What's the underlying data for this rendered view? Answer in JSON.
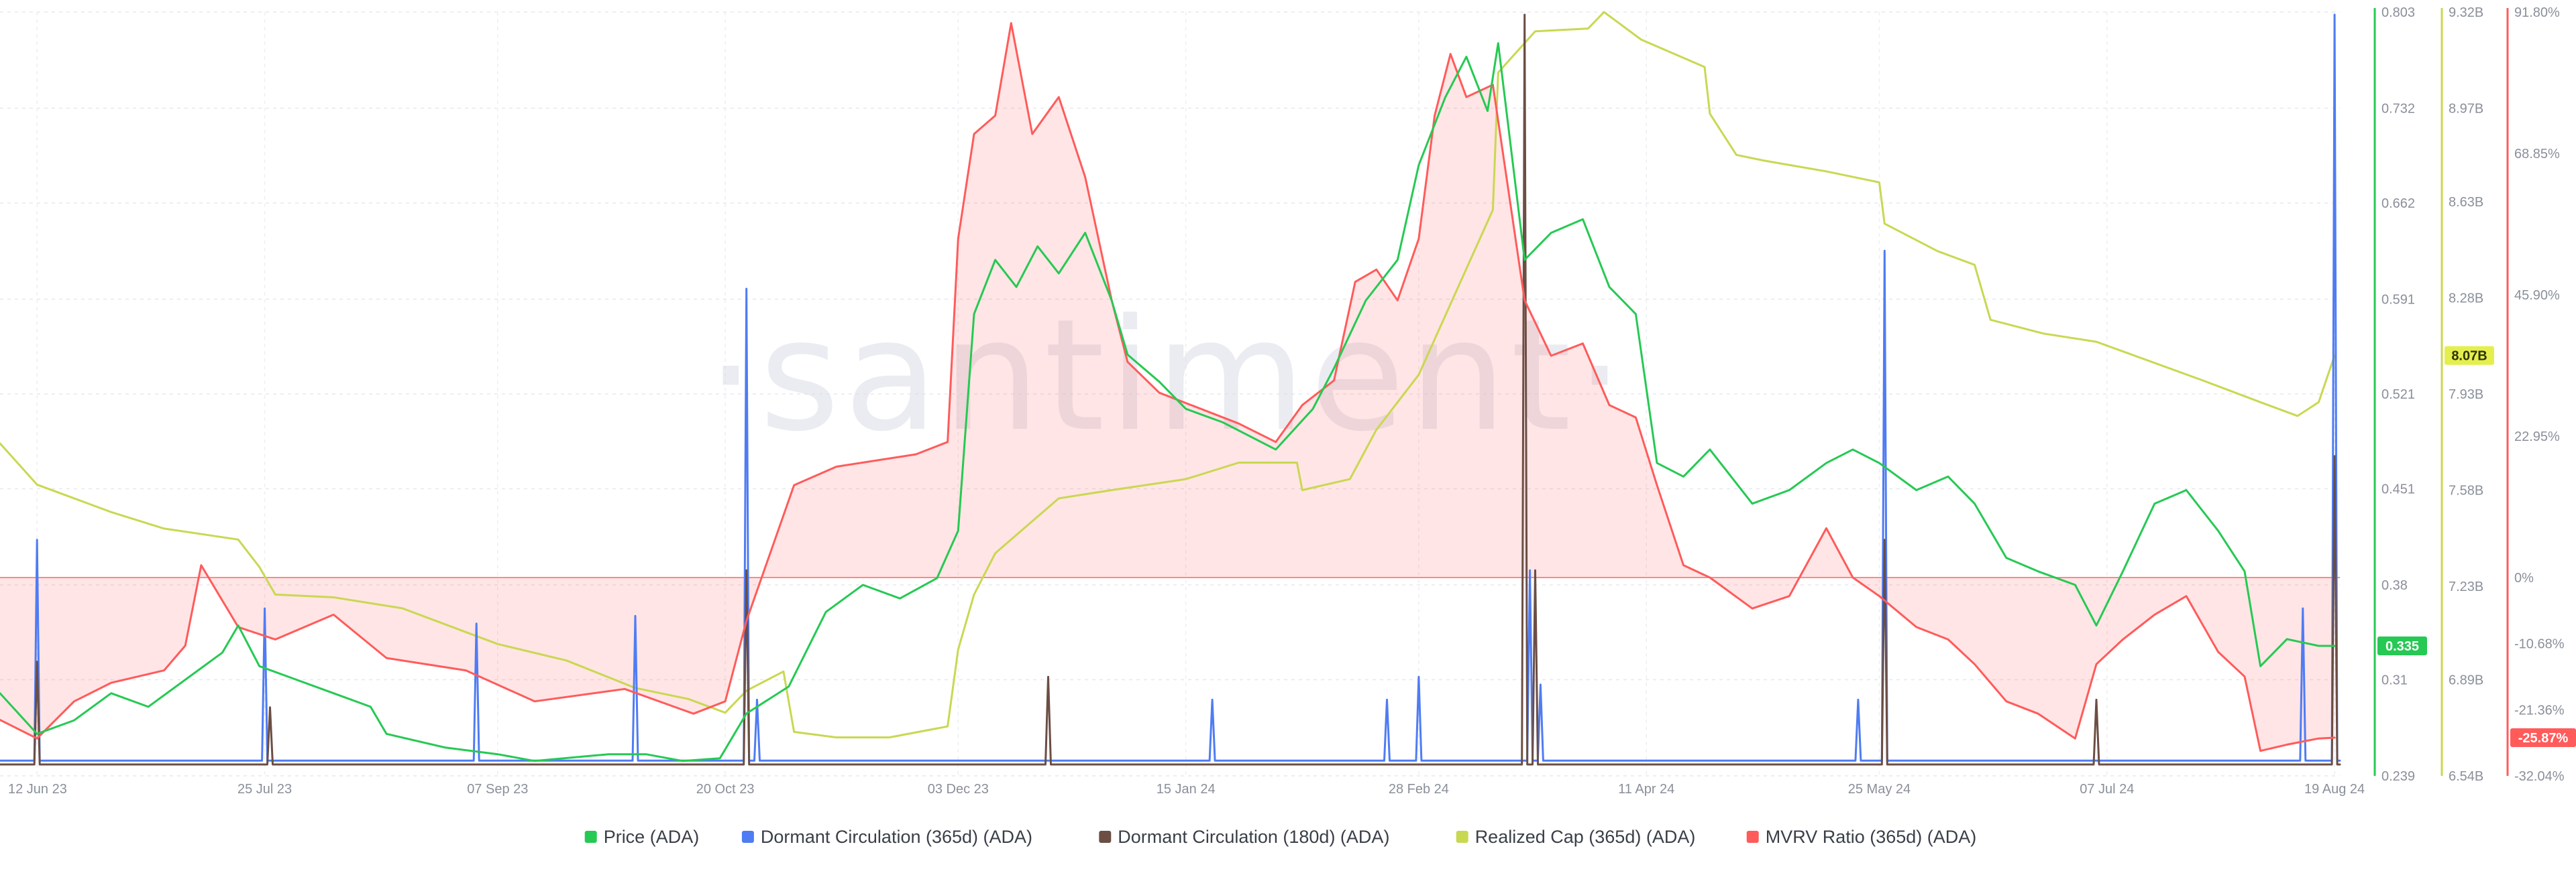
{
  "chart_data": {
    "type": "line",
    "watermark": "·santiment·",
    "x_range": [
      "2023-06-05",
      "2024-08-20"
    ],
    "x_ticks": [
      "12 Jun 23",
      "25 Jul 23",
      "07 Sep 23",
      "20 Oct 23",
      "03 Dec 23",
      "15 Jan 24",
      "28 Feb 24",
      "11 Apr 24",
      "25 May 24",
      "07 Jul 24",
      "19 Aug 24"
    ],
    "axes": {
      "price": {
        "ticks": [
          "0.803",
          "0.732",
          "0.662",
          "0.591",
          "0.521",
          "0.451",
          "0.38",
          "0.31",
          "0.239"
        ],
        "ylim": [
          0.239,
          0.803
        ],
        "color": "#26c953"
      },
      "realized_cap": {
        "ticks": [
          "9.32B",
          "8.97B",
          "8.63B",
          "8.28B",
          "7.93B",
          "7.58B",
          "7.23B",
          "6.89B",
          "6.54B"
        ],
        "ylim": [
          6.54,
          9.32
        ],
        "unit": "B",
        "color": "#c9d851"
      },
      "mvrv": {
        "ticks": [
          "91.80%",
          "68.85%",
          "45.90%",
          "22.95%",
          "0%",
          "-10.68%",
          "-21.36%",
          "-32.04%"
        ],
        "ylim": [
          -32.04,
          91.8
        ],
        "color": "#ff5b5b"
      }
    },
    "badges": [
      {
        "text": "8.07B",
        "axis": "realized_cap",
        "value": 8.07,
        "bg": "#e4ef4f",
        "fg": "#2d3200"
      },
      {
        "text": "0.335",
        "axis": "price",
        "value": 0.335,
        "bg": "#26c953",
        "fg": "#ffffff"
      },
      {
        "text": "-25.87%",
        "axis": "mvrv",
        "value": -25.87,
        "bg": "#ff5b5b",
        "fg": "#ffffff"
      }
    ],
    "series": [
      {
        "name": "Price (ADA)",
        "color": "#26c953",
        "axis": "price",
        "points": [
          [
            "2023-06-05",
            0.3
          ],
          [
            "2023-06-12",
            0.27
          ],
          [
            "2023-06-19",
            0.28
          ],
          [
            "2023-06-26",
            0.3
          ],
          [
            "2023-07-03",
            0.29
          ],
          [
            "2023-07-10",
            0.31
          ],
          [
            "2023-07-17",
            0.33
          ],
          [
            "2023-07-20",
            0.35
          ],
          [
            "2023-07-24",
            0.32
          ],
          [
            "2023-07-31",
            0.31
          ],
          [
            "2023-08-07",
            0.3
          ],
          [
            "2023-08-14",
            0.29
          ],
          [
            "2023-08-17",
            0.27
          ],
          [
            "2023-08-28",
            0.26
          ],
          [
            "2023-09-07",
            0.255
          ],
          [
            "2023-09-14",
            0.25
          ],
          [
            "2023-09-28",
            0.255
          ],
          [
            "2023-10-05",
            0.255
          ],
          [
            "2023-10-12",
            0.25
          ],
          [
            "2023-10-19",
            0.252
          ],
          [
            "2023-10-24",
            0.285
          ],
          [
            "2023-11-01",
            0.305
          ],
          [
            "2023-11-08",
            0.36
          ],
          [
            "2023-11-15",
            0.38
          ],
          [
            "2023-11-22",
            0.37
          ],
          [
            "2023-11-29",
            0.385
          ],
          [
            "2023-12-03",
            0.42
          ],
          [
            "2023-12-06",
            0.58
          ],
          [
            "2023-12-10",
            0.62
          ],
          [
            "2023-12-14",
            0.6
          ],
          [
            "2023-12-18",
            0.63
          ],
          [
            "2023-12-22",
            0.61
          ],
          [
            "2023-12-27",
            0.64
          ],
          [
            "2024-01-01",
            0.59
          ],
          [
            "2024-01-04",
            0.55
          ],
          [
            "2024-01-10",
            0.53
          ],
          [
            "2024-01-15",
            0.51
          ],
          [
            "2024-01-22",
            0.5
          ],
          [
            "2024-02-01",
            0.48
          ],
          [
            "2024-02-08",
            0.51
          ],
          [
            "2024-02-12",
            0.54
          ],
          [
            "2024-02-18",
            0.59
          ],
          [
            "2024-02-24",
            0.62
          ],
          [
            "2024-02-28",
            0.69
          ],
          [
            "2024-03-04",
            0.74
          ],
          [
            "2024-03-08",
            0.77
          ],
          [
            "2024-03-12",
            0.73
          ],
          [
            "2024-03-14",
            0.78
          ],
          [
            "2024-03-19",
            0.62
          ],
          [
            "2024-03-24",
            0.64
          ],
          [
            "2024-03-30",
            0.65
          ],
          [
            "2024-04-04",
            0.6
          ],
          [
            "2024-04-09",
            0.58
          ],
          [
            "2024-04-13",
            0.47
          ],
          [
            "2024-04-18",
            0.46
          ],
          [
            "2024-04-23",
            0.48
          ],
          [
            "2024-05-01",
            0.44
          ],
          [
            "2024-05-08",
            0.45
          ],
          [
            "2024-05-15",
            0.47
          ],
          [
            "2024-05-20",
            0.48
          ],
          [
            "2024-05-25",
            0.47
          ],
          [
            "2024-06-01",
            0.45
          ],
          [
            "2024-06-07",
            0.46
          ],
          [
            "2024-06-12",
            0.44
          ],
          [
            "2024-06-18",
            0.4
          ],
          [
            "2024-06-24",
            0.39
          ],
          [
            "2024-07-01",
            0.38
          ],
          [
            "2024-07-05",
            0.35
          ],
          [
            "2024-07-10",
            0.39
          ],
          [
            "2024-07-16",
            0.44
          ],
          [
            "2024-07-22",
            0.45
          ],
          [
            "2024-07-28",
            0.42
          ],
          [
            "2024-08-02",
            0.39
          ],
          [
            "2024-08-05",
            0.32
          ],
          [
            "2024-08-10",
            0.34
          ],
          [
            "2024-08-16",
            0.335
          ],
          [
            "2024-08-19",
            0.335
          ]
        ]
      },
      {
        "name": "Dormant Circulation (365d) (ADA)",
        "color": "#4f7cf3",
        "axis": "dormant",
        "baseline": 0.02,
        "spikes": [
          [
            "2023-06-12",
            0.31
          ],
          [
            "2023-07-25",
            0.22
          ],
          [
            "2023-09-03",
            0.2
          ],
          [
            "2023-10-03",
            0.21
          ],
          [
            "2023-10-24",
            0.64
          ],
          [
            "2023-10-26",
            0.1
          ],
          [
            "2024-01-20",
            0.1
          ],
          [
            "2024-02-22",
            0.1
          ],
          [
            "2024-02-28",
            0.13
          ],
          [
            "2024-03-20",
            0.27
          ],
          [
            "2024-03-22",
            0.12
          ],
          [
            "2024-05-21",
            0.1
          ],
          [
            "2024-05-26",
            0.69
          ],
          [
            "2024-08-13",
            0.22
          ],
          [
            "2024-08-19",
            1.0
          ]
        ]
      },
      {
        "name": "Dormant Circulation (180d) (ADA)",
        "color": "#6b4e44",
        "axis": "dormant",
        "baseline": 0.015,
        "spikes": [
          [
            "2023-06-12",
            0.15
          ],
          [
            "2023-07-26",
            0.09
          ],
          [
            "2023-10-24",
            0.27
          ],
          [
            "2023-12-20",
            0.13
          ],
          [
            "2024-03-19",
            1.0
          ],
          [
            "2024-03-21",
            0.27
          ],
          [
            "2024-05-26",
            0.31
          ],
          [
            "2024-07-05",
            0.1
          ],
          [
            "2024-08-19",
            0.42
          ]
        ]
      },
      {
        "name": "Realized Cap (365d) (ADA)",
        "color": "#c9d851",
        "axis": "realized_cap",
        "points": [
          [
            "2023-06-05",
            7.75
          ],
          [
            "2023-06-12",
            7.6
          ],
          [
            "2023-06-19",
            7.55
          ],
          [
            "2023-06-26",
            7.5
          ],
          [
            "2023-07-06",
            7.44
          ],
          [
            "2023-07-20",
            7.4
          ],
          [
            "2023-07-24",
            7.3
          ],
          [
            "2023-07-27",
            7.2
          ],
          [
            "2023-08-07",
            7.19
          ],
          [
            "2023-08-20",
            7.15
          ],
          [
            "2023-09-07",
            7.02
          ],
          [
            "2023-09-20",
            6.96
          ],
          [
            "2023-10-03",
            6.86
          ],
          [
            "2023-10-13",
            6.82
          ],
          [
            "2023-10-20",
            6.77
          ],
          [
            "2023-10-24",
            6.85
          ],
          [
            "2023-10-31",
            6.92
          ],
          [
            "2023-11-02",
            6.7
          ],
          [
            "2023-11-10",
            6.68
          ],
          [
            "2023-11-20",
            6.68
          ],
          [
            "2023-12-01",
            6.72
          ],
          [
            "2023-12-03",
            7.0
          ],
          [
            "2023-12-06",
            7.2
          ],
          [
            "2023-12-10",
            7.35
          ],
          [
            "2023-12-16",
            7.45
          ],
          [
            "2023-12-22",
            7.55
          ],
          [
            "2024-01-01",
            7.58
          ],
          [
            "2024-01-15",
            7.62
          ],
          [
            "2024-01-25",
            7.68
          ],
          [
            "2024-02-05",
            7.68
          ],
          [
            "2024-02-06",
            7.58
          ],
          [
            "2024-02-15",
            7.62
          ],
          [
            "2024-02-20",
            7.8
          ],
          [
            "2024-02-28",
            8.0
          ],
          [
            "2024-03-06",
            8.3
          ],
          [
            "2024-03-13",
            8.6
          ],
          [
            "2024-03-14",
            9.1
          ],
          [
            "2024-03-21",
            9.25
          ],
          [
            "2024-03-31",
            9.26
          ],
          [
            "2024-04-03",
            9.32
          ],
          [
            "2024-04-10",
            9.22
          ],
          [
            "2024-04-22",
            9.12
          ],
          [
            "2024-04-23",
            8.95
          ],
          [
            "2024-04-28",
            8.8
          ],
          [
            "2024-05-03",
            8.78
          ],
          [
            "2024-05-15",
            8.74
          ],
          [
            "2024-05-25",
            8.7
          ],
          [
            "2024-05-26",
            8.55
          ],
          [
            "2024-06-05",
            8.45
          ],
          [
            "2024-06-12",
            8.4
          ],
          [
            "2024-06-15",
            8.2
          ],
          [
            "2024-06-25",
            8.15
          ],
          [
            "2024-07-05",
            8.12
          ],
          [
            "2024-07-15",
            8.05
          ],
          [
            "2024-07-25",
            7.98
          ],
          [
            "2024-08-05",
            7.9
          ],
          [
            "2024-08-12",
            7.85
          ],
          [
            "2024-08-16",
            7.9
          ],
          [
            "2024-08-19",
            8.07
          ]
        ]
      },
      {
        "name": "MVRV Ratio (365d) (ADA)",
        "color": "#ff5b5b",
        "axis": "mvrv",
        "points": [
          [
            "2023-06-05",
            -23
          ],
          [
            "2023-06-12",
            -26
          ],
          [
            "2023-06-19",
            -20
          ],
          [
            "2023-06-26",
            -17
          ],
          [
            "2023-07-06",
            -15
          ],
          [
            "2023-07-10",
            -11
          ],
          [
            "2023-07-13",
            2
          ],
          [
            "2023-07-20",
            -8
          ],
          [
            "2023-07-27",
            -10
          ],
          [
            "2023-08-07",
            -6
          ],
          [
            "2023-08-17",
            -13
          ],
          [
            "2023-09-01",
            -15
          ],
          [
            "2023-09-14",
            -20
          ],
          [
            "2023-10-01",
            -18
          ],
          [
            "2023-10-14",
            -22
          ],
          [
            "2023-10-20",
            -20
          ],
          [
            "2023-10-24",
            -7
          ],
          [
            "2023-11-02",
            15
          ],
          [
            "2023-11-10",
            18
          ],
          [
            "2023-11-25",
            20
          ],
          [
            "2023-12-01",
            22
          ],
          [
            "2023-12-03",
            55
          ],
          [
            "2023-12-06",
            72
          ],
          [
            "2023-12-10",
            75
          ],
          [
            "2023-12-13",
            90
          ],
          [
            "2023-12-17",
            72
          ],
          [
            "2023-12-22",
            78
          ],
          [
            "2023-12-27",
            65
          ],
          [
            "2024-01-01",
            45
          ],
          [
            "2024-01-04",
            35
          ],
          [
            "2024-01-10",
            30
          ],
          [
            "2024-01-16",
            28
          ],
          [
            "2024-01-25",
            25
          ],
          [
            "2024-02-01",
            22
          ],
          [
            "2024-02-06",
            28
          ],
          [
            "2024-02-12",
            32
          ],
          [
            "2024-02-16",
            48
          ],
          [
            "2024-02-20",
            50
          ],
          [
            "2024-02-24",
            45
          ],
          [
            "2024-02-28",
            55
          ],
          [
            "2024-03-02",
            75
          ],
          [
            "2024-03-05",
            85
          ],
          [
            "2024-03-08",
            78
          ],
          [
            "2024-03-13",
            80
          ],
          [
            "2024-03-19",
            45
          ],
          [
            "2024-03-24",
            36
          ],
          [
            "2024-03-30",
            38
          ],
          [
            "2024-04-04",
            28
          ],
          [
            "2024-04-09",
            26
          ],
          [
            "2024-04-13",
            15
          ],
          [
            "2024-04-18",
            2
          ],
          [
            "2024-04-23",
            0
          ],
          [
            "2024-05-01",
            -5
          ],
          [
            "2024-05-08",
            -3
          ],
          [
            "2024-05-15",
            8
          ],
          [
            "2024-05-20",
            0
          ],
          [
            "2024-05-25",
            -3
          ],
          [
            "2024-06-01",
            -8
          ],
          [
            "2024-06-07",
            -10
          ],
          [
            "2024-06-12",
            -14
          ],
          [
            "2024-06-18",
            -20
          ],
          [
            "2024-06-24",
            -22
          ],
          [
            "2024-07-01",
            -26
          ],
          [
            "2024-07-05",
            -14
          ],
          [
            "2024-07-10",
            -10
          ],
          [
            "2024-07-16",
            -6
          ],
          [
            "2024-07-22",
            -3
          ],
          [
            "2024-07-28",
            -12
          ],
          [
            "2024-08-02",
            -16
          ],
          [
            "2024-08-05",
            -28
          ],
          [
            "2024-08-10",
            -27
          ],
          [
            "2024-08-16",
            -26
          ],
          [
            "2024-08-19",
            -25.87
          ]
        ]
      }
    ],
    "legend_position": "bottom-center",
    "grid": true
  }
}
